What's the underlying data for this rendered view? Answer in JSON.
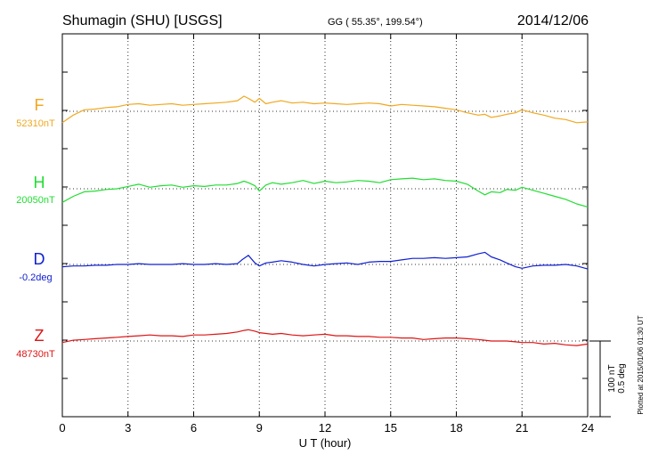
{
  "header": {
    "station": "Shumagin (SHU)  [USGS]",
    "coords": "GG ( 55.35°, 199.54°)",
    "date": "2014/12/06"
  },
  "scale": {
    "nt": "100 nT",
    "deg": "0.5 deg"
  },
  "plotted_note": "Plotted at 2015/01/06 01:30 UT",
  "chart_data": {
    "type": "line",
    "xlabel": "U T (hour)",
    "xlim": [
      0,
      24
    ],
    "xticks": [
      "0",
      "3",
      "6",
      "9",
      "12",
      "15",
      "18",
      "21",
      "24"
    ],
    "series": [
      {
        "name": "F",
        "baseline_label": "52310nT",
        "color": "#f0a820",
        "x": [
          0,
          0.5,
          1,
          1.5,
          2,
          2.5,
          3,
          3.5,
          4,
          4.5,
          5,
          5.5,
          6,
          6.5,
          7,
          7.5,
          8,
          8.3,
          8.5,
          8.8,
          9,
          9.3,
          9.6,
          10,
          10.5,
          11,
          11.5,
          12,
          12.5,
          13,
          13.5,
          14,
          14.5,
          15,
          15.5,
          16,
          16.5,
          17,
          17.5,
          18,
          18.5,
          19,
          19.3,
          19.6,
          20,
          20.3,
          20.7,
          21,
          21.5,
          22,
          22.5,
          23,
          23.5,
          24
        ],
        "y": [
          -15,
          -5,
          2,
          3,
          5,
          6,
          9,
          10,
          8,
          9,
          10,
          8,
          9,
          10,
          11,
          12,
          14,
          20,
          17,
          12,
          17,
          10,
          12,
          14,
          11,
          12,
          10,
          11,
          10,
          9,
          10,
          11,
          10,
          7,
          9,
          8,
          7,
          6,
          4,
          2,
          -2,
          -5,
          -4,
          -8,
          -6,
          -4,
          -2,
          2,
          -2,
          -5,
          -9,
          -11,
          -15,
          -14
        ]
      },
      {
        "name": "H",
        "baseline_label": "20050nT",
        "color": "#22dd33",
        "x": [
          0,
          0.5,
          1,
          1.5,
          2,
          2.5,
          3,
          3.5,
          4,
          4.5,
          5,
          5.5,
          6,
          6.5,
          7,
          7.5,
          8,
          8.3,
          8.5,
          8.8,
          9,
          9.3,
          9.6,
          10,
          10.5,
          11,
          11.5,
          12,
          12.5,
          13,
          13.5,
          14,
          14.5,
          15,
          15.5,
          16,
          16.5,
          17,
          17.5,
          18,
          18.5,
          19,
          19.3,
          19.6,
          20,
          20.3,
          20.7,
          21,
          21.5,
          22,
          22.5,
          23,
          23.5,
          24
        ],
        "y": [
          -18,
          -10,
          -4,
          -3,
          -1,
          0,
          3,
          6,
          2,
          4,
          5,
          2,
          4,
          3,
          5,
          5,
          7,
          10,
          8,
          4,
          -3,
          5,
          8,
          6,
          8,
          11,
          7,
          10,
          8,
          9,
          11,
          10,
          8,
          12,
          13,
          14,
          12,
          13,
          11,
          10,
          6,
          -3,
          -8,
          -4,
          -5,
          -1,
          -2,
          2,
          -2,
          -6,
          -10,
          -14,
          -20,
          -24
        ]
      },
      {
        "name": "D",
        "baseline_label": "-0.2deg",
        "color": "#1020d0",
        "x": [
          0,
          0.5,
          1,
          1.5,
          2,
          2.5,
          3,
          3.5,
          4,
          4.5,
          5,
          5.5,
          6,
          6.5,
          7,
          7.5,
          8,
          8.2,
          8.5,
          8.8,
          9,
          9.3,
          9.6,
          10,
          10.5,
          11,
          11.5,
          12,
          12.5,
          13,
          13.5,
          14,
          14.5,
          15,
          15.5,
          16,
          16.5,
          17,
          17.5,
          18,
          18.5,
          19,
          19.3,
          19.6,
          20,
          20.3,
          20.7,
          21,
          21.5,
          22,
          22.5,
          23,
          23.5,
          24
        ],
        "y": [
          -3,
          -2,
          -2,
          -1,
          -1,
          0,
          0,
          1,
          0,
          0,
          0,
          1,
          0,
          0,
          1,
          0,
          1,
          6,
          12,
          2,
          -2,
          2,
          3,
          5,
          3,
          0,
          -2,
          0,
          1,
          2,
          0,
          3,
          4,
          4,
          6,
          8,
          8,
          9,
          8,
          9,
          10,
          14,
          16,
          10,
          6,
          2,
          -3,
          -5,
          -2,
          -1,
          -1,
          0,
          -2,
          -6
        ]
      },
      {
        "name": "Z",
        "baseline_label": "48730nT",
        "color": "#dd1515",
        "x": [
          0,
          0.5,
          1,
          1.5,
          2,
          2.5,
          3,
          3.5,
          4,
          4.5,
          5,
          5.5,
          6,
          6.5,
          7,
          7.5,
          8,
          8.3,
          8.5,
          8.8,
          9,
          9.3,
          9.6,
          10,
          10.5,
          11,
          11.5,
          12,
          12.5,
          13,
          13.5,
          14,
          14.5,
          15,
          15.5,
          16,
          16.5,
          17,
          17.5,
          18,
          18.5,
          19,
          19.3,
          19.6,
          20,
          20.3,
          20.7,
          21,
          21.5,
          22,
          22.5,
          23,
          23.5,
          24
        ],
        "y": [
          -2,
          1,
          2,
          3,
          4,
          5,
          6,
          7,
          8,
          7,
          7,
          6,
          8,
          8,
          9,
          10,
          12,
          14,
          15,
          13,
          11,
          10,
          9,
          10,
          8,
          7,
          8,
          9,
          7,
          7,
          6,
          6,
          5,
          5,
          4,
          4,
          2,
          3,
          4,
          4,
          3,
          2,
          1,
          0,
          0,
          0,
          -1,
          -2,
          -2,
          -4,
          -3,
          -5,
          -6,
          -4
        ]
      }
    ],
    "grid": true
  }
}
